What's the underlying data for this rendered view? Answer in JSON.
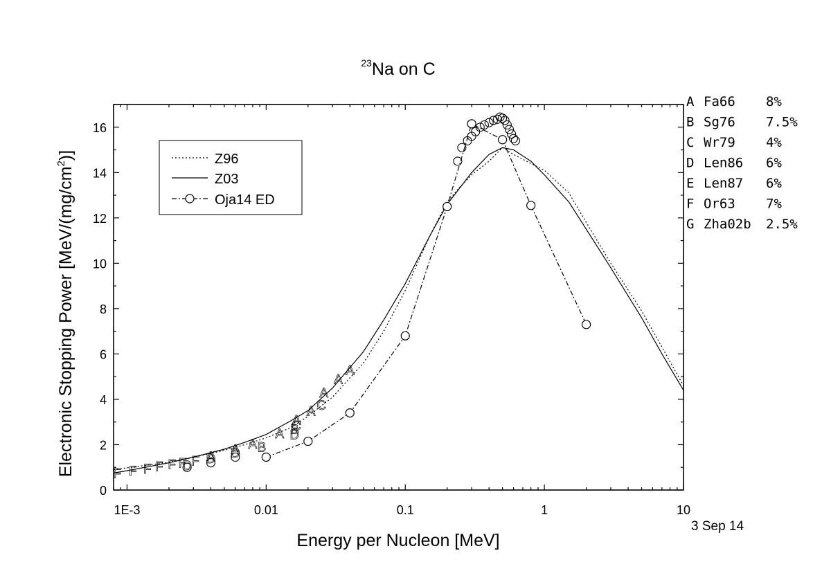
{
  "chart_data": {
    "type": "line",
    "title_sup": "23",
    "title_main": "Na on C",
    "xlabel": "Energy per Nucleon [MeV]",
    "ylabel_main": "Electronic Stopping Power [MeV/(mg/cm",
    "ylabel_sup": "2",
    "ylabel_end": ")]",
    "x_scale": "log",
    "xlim": [
      0.0008,
      10
    ],
    "ylim": [
      0,
      17
    ],
    "x_ticks": [
      {
        "value": 0.001,
        "label": "1E-3"
      },
      {
        "value": 0.01,
        "label": "0.01"
      },
      {
        "value": 0.1,
        "label": "0.1"
      },
      {
        "value": 1,
        "label": "1"
      },
      {
        "value": 10,
        "label": "10"
      }
    ],
    "y_ticks": [
      {
        "value": 0,
        "label": "0"
      },
      {
        "value": 2,
        "label": "2"
      },
      {
        "value": 4,
        "label": "4"
      },
      {
        "value": 6,
        "label": "6"
      },
      {
        "value": 8,
        "label": "8"
      },
      {
        "value": 10,
        "label": "10"
      },
      {
        "value": 12,
        "label": "12"
      },
      {
        "value": 14,
        "label": "14"
      },
      {
        "value": 16,
        "label": "16"
      }
    ],
    "grid": false,
    "legend_position": "top-left",
    "series": [
      {
        "name": "Z96",
        "style": "dotted",
        "x": [
          0.0008,
          0.001,
          0.002,
          0.003,
          0.005,
          0.007,
          0.01,
          0.015,
          0.02,
          0.03,
          0.05,
          0.07,
          0.1,
          0.15,
          0.2,
          0.25,
          0.3,
          0.4,
          0.5,
          0.6,
          0.8,
          1.0,
          1.5,
          2.0,
          3.0,
          5.0,
          7.0,
          10.0
        ],
        "y": [
          0.9,
          0.98,
          1.22,
          1.45,
          1.75,
          2.0,
          2.3,
          2.75,
          3.25,
          4.1,
          5.6,
          7.0,
          8.8,
          11.2,
          12.7,
          13.4,
          13.9,
          14.5,
          15.1,
          14.8,
          14.4,
          14.1,
          13.1,
          11.8,
          10.0,
          7.9,
          6.3,
          4.6
        ]
      },
      {
        "name": "Z03",
        "style": "solid",
        "x": [
          0.0008,
          0.001,
          0.002,
          0.003,
          0.005,
          0.007,
          0.01,
          0.015,
          0.02,
          0.03,
          0.05,
          0.07,
          0.1,
          0.15,
          0.2,
          0.3,
          0.4,
          0.5,
          0.6,
          0.8,
          1.0,
          1.5,
          2.0,
          3.0,
          5.0,
          7.0,
          10.0
        ],
        "y": [
          0.75,
          0.85,
          1.2,
          1.45,
          1.8,
          2.1,
          2.45,
          3.05,
          3.5,
          4.5,
          6.1,
          7.5,
          9.1,
          11.2,
          12.6,
          14.0,
          14.8,
          15.1,
          15.0,
          14.5,
          13.9,
          12.7,
          11.5,
          9.8,
          7.6,
          6.0,
          4.4
        ]
      },
      {
        "name": "Oja14 ED",
        "style": "dashdot-circles",
        "x": [
          0.01,
          0.02,
          0.04,
          0.1,
          0.2,
          0.3,
          0.5,
          0.8,
          2.0
        ],
        "y": [
          1.45,
          2.15,
          3.4,
          6.8,
          12.5,
          16.15,
          15.45,
          12.55,
          7.3
        ]
      }
    ],
    "extra_circles": {
      "x": [
        0.0027,
        0.004,
        0.006,
        0.238,
        0.255,
        0.28,
        0.3,
        0.32,
        0.345,
        0.37,
        0.4,
        0.43,
        0.46,
        0.48,
        0.5,
        0.52,
        0.54,
        0.56,
        0.58,
        0.6,
        0.62
      ],
      "y": [
        1.0,
        1.2,
        1.45,
        14.5,
        15.1,
        15.4,
        15.6,
        15.8,
        16.0,
        16.1,
        16.2,
        16.3,
        16.35,
        16.45,
        16.4,
        16.3,
        16.1,
        15.9,
        15.7,
        15.5,
        15.4
      ]
    },
    "letter_points": [
      {
        "l": "F",
        "x": 0.00085,
        "y": 0.75
      },
      {
        "l": "F",
        "x": 0.0011,
        "y": 0.85
      },
      {
        "l": "F",
        "x": 0.0014,
        "y": 0.95
      },
      {
        "l": "F",
        "x": 0.0017,
        "y": 1.05
      },
      {
        "l": "F",
        "x": 0.0021,
        "y": 1.15
      },
      {
        "l": "F",
        "x": 0.0025,
        "y": 1.2
      },
      {
        "l": "F",
        "x": 0.0031,
        "y": 1.3
      },
      {
        "l": "D",
        "x": 0.0027,
        "y": 1.1
      },
      {
        "l": "D",
        "x": 0.004,
        "y": 1.4
      },
      {
        "l": "D",
        "x": 0.006,
        "y": 1.65
      },
      {
        "l": "A",
        "x": 0.004,
        "y": 1.5
      },
      {
        "l": "A",
        "x": 0.006,
        "y": 1.8
      },
      {
        "l": "A",
        "x": 0.008,
        "y": 2.05
      },
      {
        "l": "B",
        "x": 0.0093,
        "y": 1.9
      },
      {
        "l": "A",
        "x": 0.0125,
        "y": 2.5
      },
      {
        "l": "D",
        "x": 0.016,
        "y": 2.45
      },
      {
        "l": "B",
        "x": 0.016,
        "y": 2.7
      },
      {
        "l": "C",
        "x": 0.0165,
        "y": 2.85
      },
      {
        "l": "A",
        "x": 0.0165,
        "y": 3.1
      },
      {
        "l": "A",
        "x": 0.021,
        "y": 3.5
      },
      {
        "l": "C",
        "x": 0.025,
        "y": 3.75
      },
      {
        "l": "A",
        "x": 0.026,
        "y": 4.3
      },
      {
        "l": "A",
        "x": 0.033,
        "y": 4.9
      },
      {
        "l": "A",
        "x": 0.04,
        "y": 5.3
      }
    ],
    "reference_legend": [
      {
        "letter": "A",
        "ref": "Fa66",
        "err": "8%"
      },
      {
        "letter": "B",
        "ref": "Sg76",
        "err": "7.5%"
      },
      {
        "letter": "C",
        "ref": "Wr79",
        "err": "4%"
      },
      {
        "letter": "D",
        "ref": "Len86",
        "err": "6%"
      },
      {
        "letter": "E",
        "ref": "Len87",
        "err": "6%"
      },
      {
        "letter": "F",
        "ref": "Or63",
        "err": "7%"
      },
      {
        "letter": "G",
        "ref": "Zha02b",
        "err": "2.5%"
      }
    ],
    "date_stamp": "3 Sep 14"
  }
}
